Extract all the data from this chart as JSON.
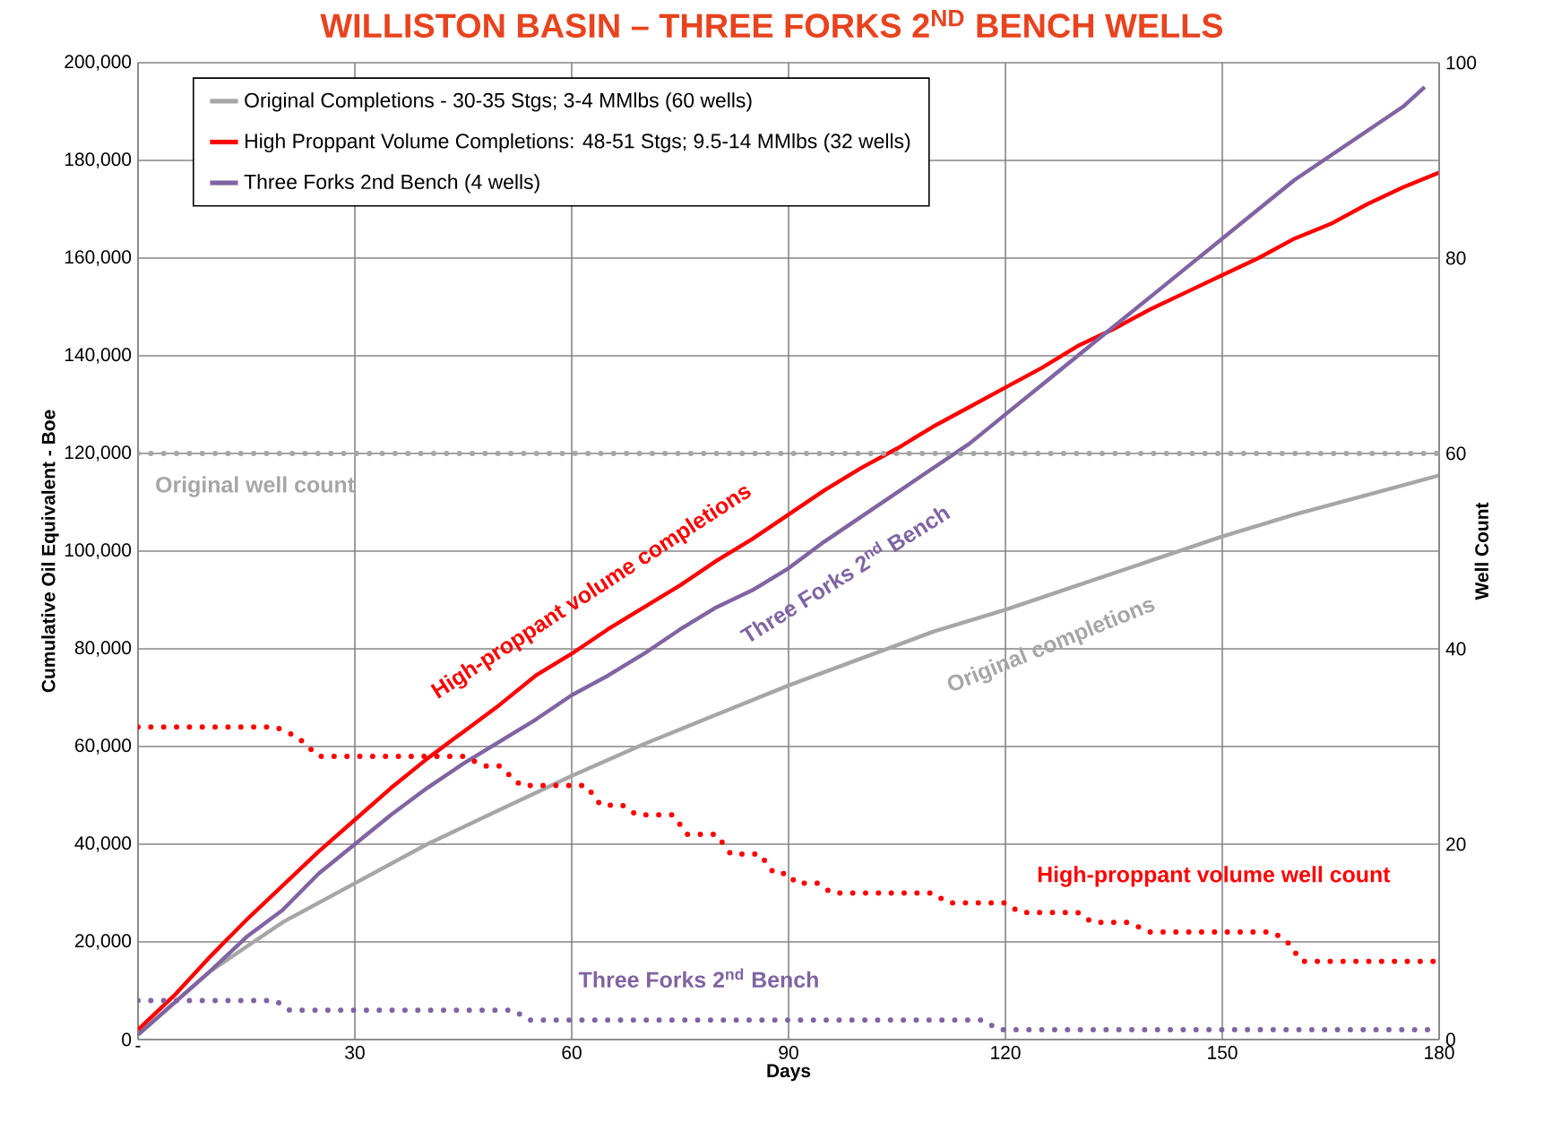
{
  "chart_data": {
    "type": "line",
    "title": "WILLISTON BASIN – THREE FORKS 2$^{ND}$ BENCH WELLS",
    "xlabel": "Days",
    "ylabel": "Cumulative Oil Equivalent - Boe",
    "y2label": "Well Count",
    "xlim": [
      0,
      180
    ],
    "xticks": [
      {
        "value": 0,
        "label": "-"
      },
      30,
      60,
      90,
      120,
      150,
      180
    ],
    "ylim": [
      0,
      200000
    ],
    "yticks": [
      {
        "value": 0,
        "label": "0"
      },
      {
        "value": 20000,
        "label": "20,000"
      },
      {
        "value": 40000,
        "label": "40,000"
      },
      {
        "value": 60000,
        "label": "60,000"
      },
      {
        "value": 80000,
        "label": "80,000"
      },
      {
        "value": 100000,
        "label": "100,000"
      },
      {
        "value": 120000,
        "label": "120,000"
      },
      {
        "value": 140000,
        "label": "140,000"
      },
      {
        "value": 160000,
        "label": "160,000"
      },
      {
        "value": 180000,
        "label": "180,000"
      },
      {
        "value": 200000,
        "label": "200,000"
      }
    ],
    "y2lim": [
      0,
      100
    ],
    "y2ticks": [
      0,
      20,
      40,
      60,
      80,
      100
    ],
    "grid": true,
    "legend": "top left",
    "series": [
      {
        "name": "Original Completions - 30-35 Stgs; 3-4 MMlbs (60 wells)",
        "color": "#a6a6a6",
        "line_style": "solid",
        "x": [
          0,
          10,
          20,
          30,
          40,
          50,
          60,
          70,
          80,
          90,
          100,
          110,
          120,
          130,
          140,
          150,
          160,
          170,
          180
        ],
        "values": [
          1000,
          14000,
          24000,
          32000,
          40000,
          47000,
          54000,
          60500,
          66500,
          72500,
          78000,
          83500,
          88000,
          93000,
          98000,
          103000,
          107500,
          111500,
          115500
        ]
      },
      {
        "name": "High Proppant Volume Completions: 48-51 Stgs; 9.5-14 MMlbs (32 wells)",
        "color": "#ff0000",
        "line_style": "solid",
        "x": [
          0,
          5,
          10,
          15,
          20,
          25,
          30,
          35,
          40,
          45,
          50,
          55,
          60,
          65,
          70,
          75,
          80,
          85,
          90,
          95,
          100,
          105,
          110,
          115,
          120,
          125,
          130,
          135,
          140,
          145,
          150,
          155,
          160,
          165,
          170,
          175,
          180
        ],
        "values": [
          2000,
          9000,
          17000,
          24500,
          31500,
          38500,
          45000,
          51500,
          57500,
          63000,
          68500,
          74500,
          79000,
          84000,
          88500,
          93000,
          98000,
          102500,
          107500,
          112500,
          117000,
          121000,
          125500,
          129500,
          133500,
          137500,
          142000,
          145500,
          149500,
          153000,
          156500,
          160000,
          164000,
          167000,
          171000,
          174500,
          177500
        ]
      },
      {
        "name": "Three Forks 2nd Bench (4 wells)",
        "color": "#8064a2",
        "line_style": "solid",
        "x": [
          0,
          5,
          10,
          15,
          20,
          25,
          30,
          35,
          40,
          45,
          50,
          55,
          60,
          65,
          70,
          75,
          80,
          85,
          90,
          95,
          100,
          105,
          110,
          115,
          120,
          125,
          130,
          135,
          140,
          145,
          150,
          155,
          160,
          165,
          170,
          175,
          178
        ],
        "values": [
          1000,
          7500,
          14000,
          21000,
          26500,
          34000,
          40000,
          46000,
          51500,
          56500,
          61000,
          65500,
          70500,
          74500,
          79000,
          84000,
          88500,
          92000,
          96500,
          102000,
          107000,
          112000,
          117000,
          122000,
          128000,
          134000,
          140000,
          146000,
          152000,
          158000,
          164000,
          170000,
          176000,
          181000,
          186000,
          191000,
          195000
        ]
      },
      {
        "name": "Original well count",
        "color": "#a6a6a6",
        "line_style": "dotted",
        "axis": "y2",
        "x": [
          0,
          180
        ],
        "values": [
          60,
          60
        ]
      },
      {
        "name": "High-proppant volume well count",
        "color": "#ff0000",
        "line_style": "dotted",
        "axis": "y2",
        "x": [
          0,
          19,
          22,
          25,
          45,
          48,
          50,
          53,
          62,
          64,
          67,
          69,
          74,
          76,
          80,
          82,
          86,
          88,
          90,
          91,
          94,
          96,
          110,
          112,
          120,
          122,
          130,
          132,
          137,
          140,
          157,
          159,
          161,
          180
        ],
        "values": [
          32,
          32,
          31,
          29,
          29,
          28,
          28,
          26,
          26,
          24,
          24,
          23,
          23,
          21,
          21,
          19,
          19,
          17,
          17,
          16,
          16,
          15,
          15,
          14,
          14,
          13,
          13,
          12,
          12,
          11,
          11,
          10,
          8,
          8
        ]
      },
      {
        "name": "Three Forks 2$^{nd}$ Bench",
        "color": "#8064a2",
        "line_style": "dotted",
        "axis": "y2",
        "x": [
          0,
          19,
          21,
          52,
          54,
          117,
          119,
          180
        ],
        "values": [
          4,
          4,
          3,
          3,
          2,
          2,
          1,
          1
        ]
      }
    ],
    "annotations": [
      "High-proppant volume completions",
      "Three Forks 2$^{nd}$ Bench",
      "Original completions"
    ]
  }
}
